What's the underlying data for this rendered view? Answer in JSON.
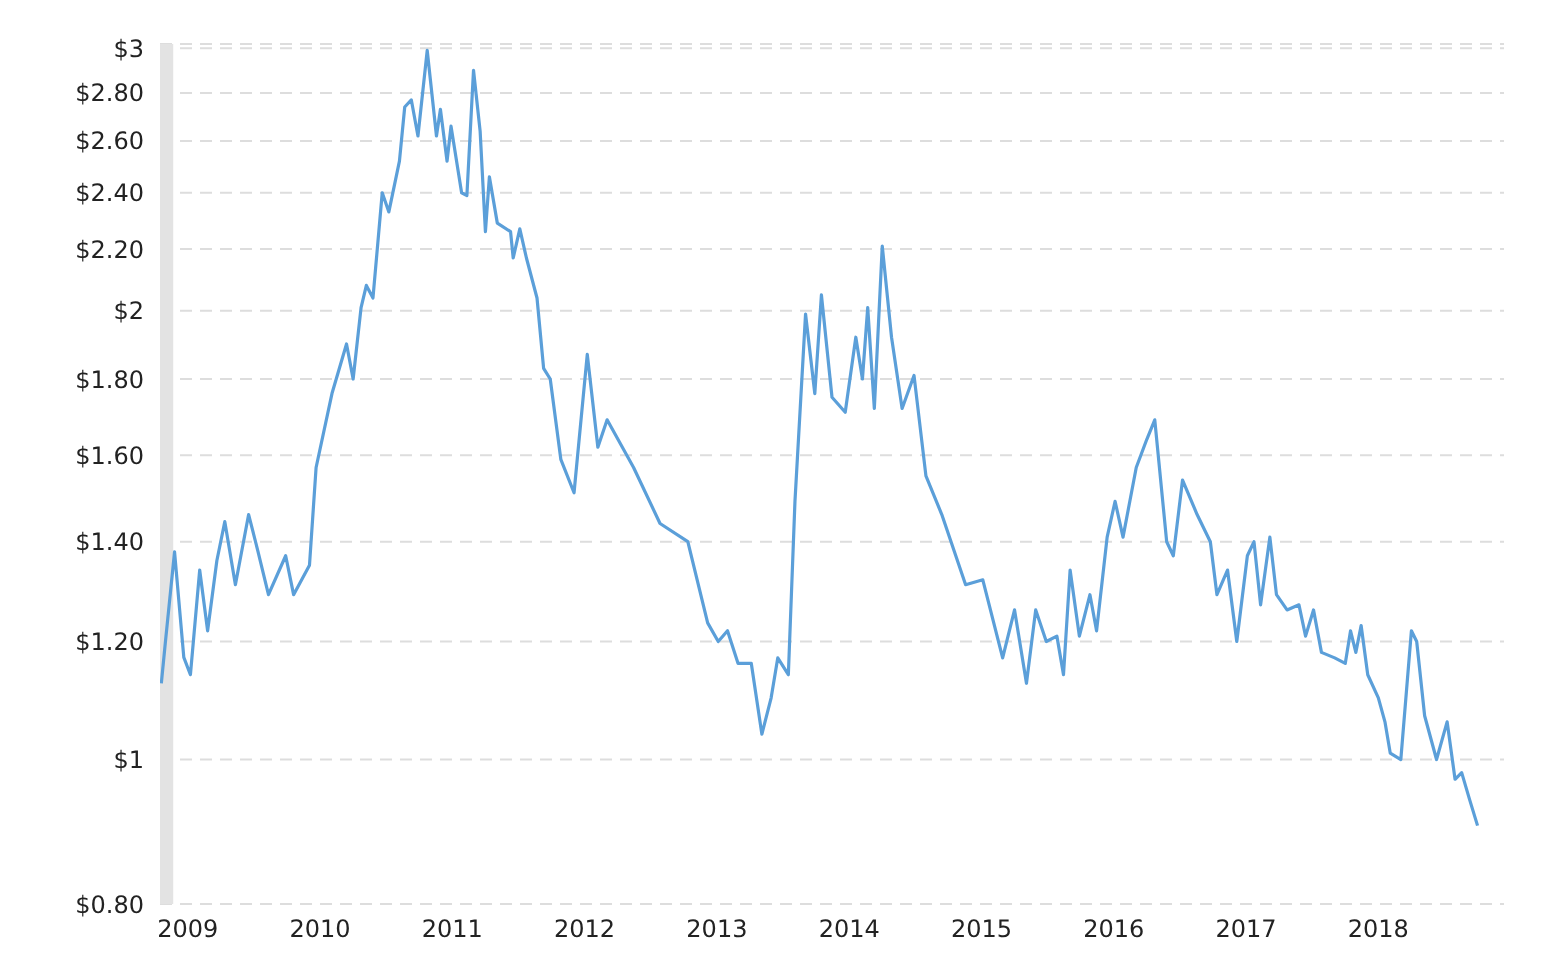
{
  "chart_data": {
    "type": "line",
    "log": "y",
    "grid": "y",
    "x": [
      2008.8,
      2008.83,
      2008.9,
      2008.97,
      2009.02,
      2009.09,
      2009.15,
      2009.22,
      2009.28,
      2009.36,
      2009.46,
      2009.53,
      2009.61,
      2009.74,
      2009.8,
      2009.92,
      2009.97,
      2010.09,
      2010.2,
      2010.25,
      2010.31,
      2010.35,
      2010.4,
      2010.47,
      2010.52,
      2010.6,
      2010.64,
      2010.69,
      2010.74,
      2010.81,
      2010.88,
      2010.91,
      2010.96,
      2010.99,
      2011.07,
      2011.11,
      2011.16,
      2011.21,
      2011.25,
      2011.28,
      2011.34,
      2011.44,
      2011.46,
      2011.51,
      2011.56,
      2011.64,
      2011.69,
      2011.74,
      2011.82,
      2011.92,
      2012.02,
      2012.1,
      2012.17,
      2012.37,
      2012.57,
      2012.78,
      2012.93,
      2013.01,
      2013.08,
      2013.16,
      2013.26,
      2013.34,
      2013.41,
      2013.46,
      2013.54,
      2013.59,
      2013.67,
      2013.74,
      2013.79,
      2013.87,
      2013.97,
      2014.05,
      2014.1,
      2014.14,
      2014.19,
      2014.25,
      2014.32,
      2014.4,
      2014.49,
      2014.58,
      2014.7,
      2014.88,
      2015.01,
      2015.16,
      2015.25,
      2015.34,
      2015.41,
      2015.49,
      2015.57,
      2015.62,
      2015.67,
      2015.74,
      2015.82,
      2015.87,
      2015.95,
      2016.01,
      2016.07,
      2016.17,
      2016.25,
      2016.31,
      2016.4,
      2016.45,
      2016.52,
      2016.63,
      2016.73,
      2016.78,
      2016.86,
      2016.93,
      2017.01,
      2017.06,
      2017.11,
      2017.18,
      2017.23,
      2017.31,
      2017.4,
      2017.45,
      2017.51,
      2017.57,
      2017.67,
      2017.75,
      2017.79,
      2017.83,
      2017.87,
      2017.92,
      2018.0,
      2018.05,
      2018.09,
      2018.17,
      2018.25,
      2018.29,
      2018.35,
      2018.44,
      2018.52,
      2018.58,
      2018.63,
      2018.69,
      2018.75
    ],
    "series": [
      {
        "color": "#5b9fd9",
        "values": [
          1.125,
          1.197,
          1.378,
          1.171,
          1.14,
          1.34,
          1.22,
          1.36,
          1.444,
          1.31,
          1.46,
          1.38,
          1.29,
          1.37,
          1.29,
          1.35,
          1.57,
          1.76,
          1.9,
          1.8,
          2.01,
          2.08,
          2.04,
          2.4,
          2.33,
          2.52,
          2.74,
          2.77,
          2.62,
          2.99,
          2.62,
          2.73,
          2.52,
          2.66,
          2.4,
          2.39,
          2.9,
          2.64,
          2.26,
          2.46,
          2.29,
          2.26,
          2.17,
          2.27,
          2.17,
          2.04,
          1.83,
          1.8,
          1.59,
          1.51,
          1.87,
          1.62,
          1.69,
          1.57,
          1.44,
          1.4,
          1.235,
          1.2,
          1.22,
          1.16,
          1.16,
          1.04,
          1.1,
          1.17,
          1.14,
          1.49,
          1.99,
          1.76,
          2.05,
          1.75,
          1.71,
          1.92,
          1.8,
          2.01,
          1.72,
          2.21,
          1.92,
          1.72,
          1.81,
          1.55,
          1.46,
          1.31,
          1.32,
          1.17,
          1.26,
          1.125,
          1.26,
          1.2,
          1.21,
          1.14,
          1.34,
          1.21,
          1.29,
          1.22,
          1.41,
          1.49,
          1.41,
          1.57,
          1.64,
          1.69,
          1.4,
          1.37,
          1.54,
          1.46,
          1.4,
          1.29,
          1.34,
          1.2,
          1.37,
          1.4,
          1.27,
          1.41,
          1.29,
          1.26,
          1.27,
          1.21,
          1.26,
          1.18,
          1.17,
          1.16,
          1.22,
          1.18,
          1.23,
          1.14,
          1.1,
          1.06,
          1.01,
          1.0,
          1.22,
          1.2,
          1.07,
          1.0,
          1.06,
          0.97,
          0.98,
          0.94,
          0.903
        ]
      }
    ],
    "xlim": [
      2008.79,
      2018.95
    ],
    "xticks": [
      2009,
      2010,
      2011,
      2012,
      2013,
      2014,
      2015,
      2016,
      2017,
      2018
    ],
    "ylim": [
      0.8,
      3.02
    ],
    "yticks": [
      {
        "value": 0.8,
        "label": "$0.80"
      },
      {
        "value": 1,
        "label": "$1"
      },
      {
        "value": 1.2,
        "label": "$1.20"
      },
      {
        "value": 1.4,
        "label": "$1.40"
      },
      {
        "value": 1.6,
        "label": "$1.60"
      },
      {
        "value": 1.8,
        "label": "$1.80"
      },
      {
        "value": 2,
        "label": "$2"
      },
      {
        "value": 2.2,
        "label": "$2.20"
      },
      {
        "value": 2.4,
        "label": "$2.40"
      },
      {
        "value": 2.6,
        "label": "$2.60"
      },
      {
        "value": 2.8,
        "label": "$2.80"
      },
      {
        "value": 3,
        "label": "$3"
      }
    ],
    "bands": [
      {
        "axis": "x",
        "from": 2008.79,
        "to": 2008.89,
        "color": "#e3e3e3"
      }
    ]
  }
}
